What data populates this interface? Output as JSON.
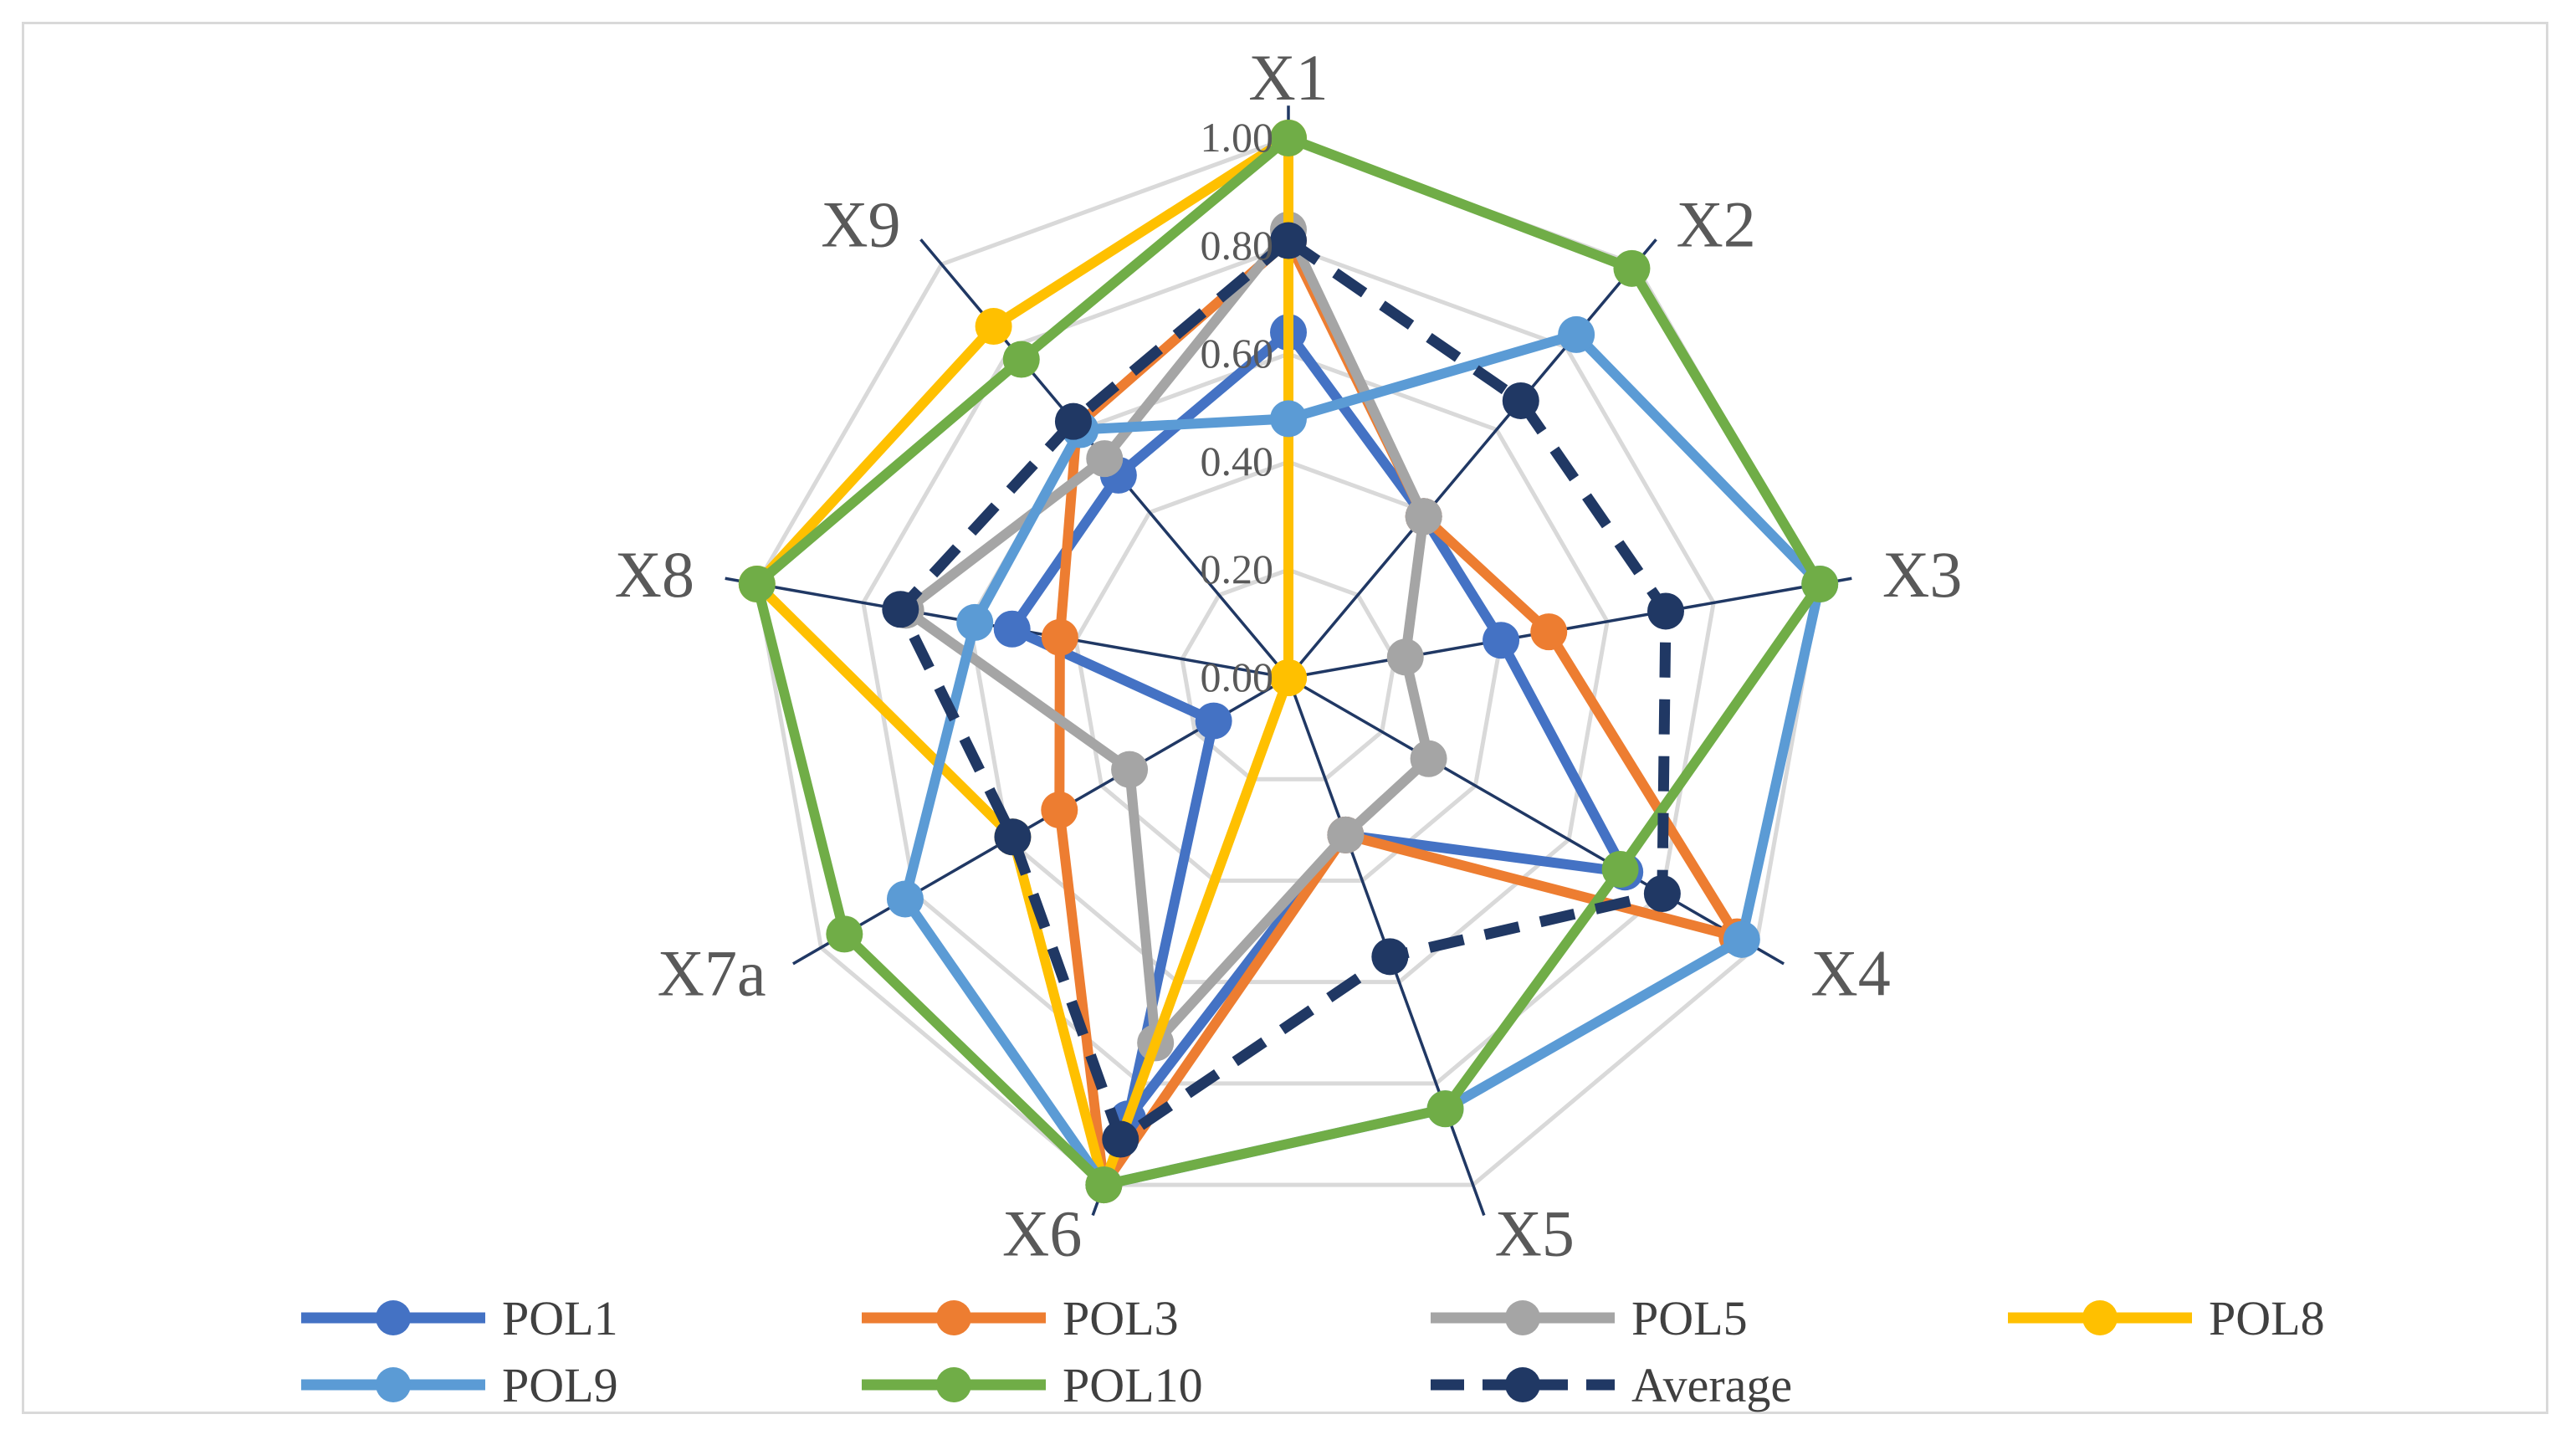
{
  "chart_data": {
    "type": "radar",
    "axes": [
      "X1",
      "X2",
      "X3",
      "X4",
      "X5",
      "X6",
      "X7a",
      "X8",
      "X9"
    ],
    "r_ticks": [
      "0.00",
      "0.20",
      "0.40",
      "0.60",
      "0.80",
      "1.00"
    ],
    "rlim": [
      0,
      1
    ],
    "grid": true,
    "legend_position": "bottom",
    "series": [
      {
        "name": "POL1",
        "color": "#4472C4",
        "dashed": false,
        "values": [
          0.64,
          0.39,
          0.4,
          0.72,
          0.31,
          0.87,
          0.16,
          0.52,
          0.49
        ]
      },
      {
        "name": "POL3",
        "color": "#ED7D31",
        "dashed": false,
        "values": [
          0.81,
          0.39,
          0.49,
          0.96,
          0.31,
          1.0,
          0.49,
          0.43,
          0.61
        ]
      },
      {
        "name": "POL5",
        "color": "#A5A5A5",
        "dashed": false,
        "values": [
          0.83,
          0.39,
          0.22,
          0.3,
          0.31,
          0.72,
          0.34,
          0.72,
          0.53
        ]
      },
      {
        "name": "POL8",
        "color": "#FFC000",
        "dashed": false,
        "values": [
          1.0,
          0.0,
          0.0,
          0.0,
          0.0,
          1.0,
          0.59,
          1.0,
          0.85
        ]
      },
      {
        "name": "POL9",
        "color": "#5B9BD5",
        "dashed": false,
        "values": [
          0.48,
          0.83,
          1.0,
          0.97,
          0.85,
          1.0,
          0.82,
          0.59,
          0.6
        ]
      },
      {
        "name": "POL10",
        "color": "#70AD47",
        "dashed": false,
        "values": [
          1.0,
          0.99,
          1.0,
          0.71,
          0.85,
          1.0,
          0.95,
          1.0,
          0.77
        ]
      },
      {
        "name": "Average",
        "color": "#203864",
        "dashed": true,
        "values": [
          0.81,
          0.67,
          0.71,
          0.8,
          0.55,
          0.91,
          0.59,
          0.73,
          0.62
        ]
      }
    ]
  }
}
